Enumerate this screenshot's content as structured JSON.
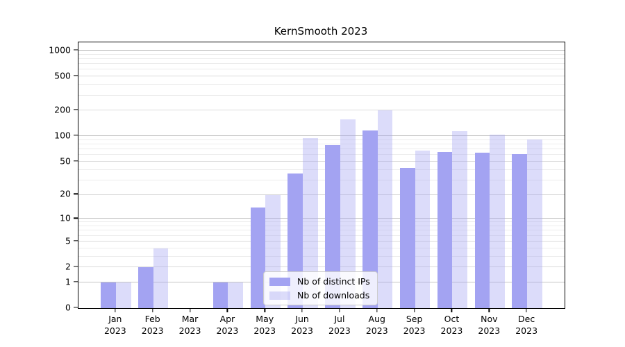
{
  "title": "KernSmooth 2023",
  "colors": {
    "ips_bar": "#a3a3f2",
    "downloads_bar": "rgba(163,163,242,0.38)",
    "grid_power10": "#c3c3c3",
    "grid_labeled": "#dadada",
    "grid_minor": "#ececec",
    "axis": "#000000"
  },
  "y_axis": {
    "scale": "log1p",
    "tick_values": [
      0,
      1,
      2,
      5,
      10,
      20,
      50,
      100,
      200,
      500,
      1000
    ],
    "tick_labels": [
      "0",
      "1",
      "2",
      "5",
      "10",
      "20",
      "50",
      "100",
      "200",
      "500",
      "1000"
    ],
    "gridlines_power10": [
      1,
      10,
      100,
      1000
    ],
    "gridlines_labeled": [
      2,
      5,
      20,
      50,
      200,
      500
    ],
    "gridlines_minor": [
      3,
      4,
      6,
      7,
      8,
      9,
      30,
      40,
      60,
      70,
      80,
      90,
      300,
      400,
      600,
      700,
      800,
      900
    ],
    "top_value": 1250
  },
  "chart_data": {
    "type": "bar",
    "title": "KernSmooth 2023",
    "xlabel": "",
    "ylabel": "",
    "categories": [
      "Jan 2023",
      "Feb 2023",
      "Mar 2023",
      "Apr 2023",
      "May 2023",
      "Jun 2023",
      "Jul 2023",
      "Aug 2023",
      "Sep 2023",
      "Oct 2023",
      "Nov 2023",
      "Dec 2023"
    ],
    "series": [
      {
        "name": "Nb of distinct IPs",
        "values": [
          1,
          2,
          0,
          1,
          14,
          36,
          78,
          116,
          42,
          65,
          64,
          62
        ]
      },
      {
        "name": "Nb of downloads",
        "values": [
          1,
          4,
          0,
          1,
          20,
          95,
          158,
          200,
          68,
          115,
          105,
          92
        ]
      }
    ],
    "y_scale": "log1p",
    "ylim": [
      0,
      1250
    ],
    "grid": true,
    "legend_position": "inside-bottom-left-of-center"
  }
}
